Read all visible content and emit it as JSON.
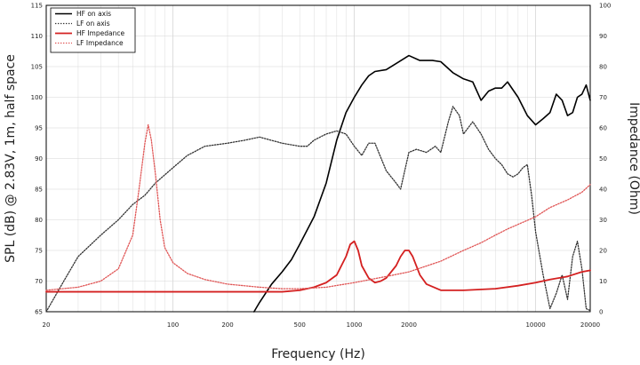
{
  "chart_data": {
    "type": "line",
    "title": "",
    "xlabel": "Frequency (Hz)",
    "ylabel": "SPL (dB) @ 2.83V, 1m, half space",
    "ylabel_right": "Impedance (Ohm)",
    "x_scale": "log",
    "xlim": [
      20,
      20000
    ],
    "ylim": [
      65,
      115
    ],
    "ylim_right": [
      0,
      100
    ],
    "x_ticks": [
      20,
      100,
      200,
      500,
      1000,
      2000,
      10000,
      20000
    ],
    "x_tick_labels": [
      "20",
      "100",
      "200",
      "500",
      "1000",
      "2000",
      "10000",
      "20000"
    ],
    "y_ticks": [
      65,
      70,
      75,
      80,
      85,
      90,
      95,
      100,
      105,
      110,
      115
    ],
    "y_tick_labels": [
      "65",
      "70",
      "75",
      "80",
      "85",
      "90",
      "95",
      "100",
      "105",
      "110",
      "115"
    ],
    "y_right_ticks": [
      0,
      10,
      20,
      30,
      40,
      50,
      60,
      70,
      80,
      90,
      100
    ],
    "y_right_tick_labels": [
      "0",
      "10",
      "20",
      "30",
      "40",
      "50",
      "60",
      "70",
      "80",
      "90",
      "100"
    ],
    "grid": true,
    "legend_position": "top-left",
    "series": [
      {
        "name": "HF on axis",
        "axis": "left",
        "color": "#000000",
        "style": "solid",
        "points": [
          [
            280,
            65
          ],
          [
            300,
            66.5
          ],
          [
            350,
            69.5
          ],
          [
            400,
            71.5
          ],
          [
            450,
            73.5
          ],
          [
            500,
            76
          ],
          [
            600,
            80.5
          ],
          [
            700,
            86
          ],
          [
            800,
            93
          ],
          [
            900,
            97.5
          ],
          [
            1000,
            100
          ],
          [
            1100,
            102
          ],
          [
            1200,
            103.5
          ],
          [
            1300,
            104.2
          ],
          [
            1500,
            104.5
          ],
          [
            1700,
            105.5
          ],
          [
            2000,
            106.8
          ],
          [
            2300,
            106
          ],
          [
            2700,
            106
          ],
          [
            3000,
            105.8
          ],
          [
            3500,
            104
          ],
          [
            4000,
            103
          ],
          [
            4500,
            102.5
          ],
          [
            5000,
            99.5
          ],
          [
            5500,
            101
          ],
          [
            6000,
            101.5
          ],
          [
            6500,
            101.5
          ],
          [
            7000,
            102.5
          ],
          [
            8000,
            100
          ],
          [
            9000,
            97
          ],
          [
            10000,
            95.5
          ],
          [
            11000,
            96.5
          ],
          [
            12000,
            97.5
          ],
          [
            13000,
            100.5
          ],
          [
            14000,
            99.5
          ],
          [
            15000,
            97
          ],
          [
            16000,
            97.5
          ],
          [
            17000,
            100
          ],
          [
            18000,
            100.5
          ],
          [
            19000,
            102
          ],
          [
            20000,
            99.5
          ]
        ]
      },
      {
        "name": "LF on axis",
        "axis": "left",
        "color": "#333333",
        "style": "dotted",
        "points": [
          [
            20,
            65
          ],
          [
            25,
            70
          ],
          [
            30,
            74
          ],
          [
            40,
            77.5
          ],
          [
            50,
            80
          ],
          [
            60,
            82.5
          ],
          [
            70,
            84
          ],
          [
            80,
            86
          ],
          [
            100,
            88.5
          ],
          [
            120,
            90.5
          ],
          [
            150,
            92
          ],
          [
            200,
            92.5
          ],
          [
            250,
            93
          ],
          [
            300,
            93.5
          ],
          [
            400,
            92.5
          ],
          [
            500,
            92
          ],
          [
            550,
            92
          ],
          [
            600,
            93
          ],
          [
            700,
            94
          ],
          [
            800,
            94.5
          ],
          [
            900,
            94
          ],
          [
            1000,
            92
          ],
          [
            1100,
            90.5
          ],
          [
            1200,
            92.5
          ],
          [
            1300,
            92.5
          ],
          [
            1500,
            88
          ],
          [
            1700,
            86
          ],
          [
            1800,
            85
          ],
          [
            2000,
            91
          ],
          [
            2200,
            91.5
          ],
          [
            2500,
            91
          ],
          [
            2800,
            92
          ],
          [
            3000,
            91
          ],
          [
            3300,
            96
          ],
          [
            3500,
            98.5
          ],
          [
            3800,
            97
          ],
          [
            4000,
            94
          ],
          [
            4500,
            96
          ],
          [
            5000,
            94
          ],
          [
            5500,
            91.5
          ],
          [
            6000,
            90
          ],
          [
            6500,
            89
          ],
          [
            7000,
            87.5
          ],
          [
            7500,
            87
          ],
          [
            8000,
            87.5
          ],
          [
            8500,
            88.5
          ],
          [
            9000,
            89
          ],
          [
            9500,
            84
          ],
          [
            10000,
            78
          ],
          [
            11000,
            71
          ],
          [
            12000,
            65.5
          ],
          [
            13000,
            68
          ],
          [
            14000,
            71
          ],
          [
            15000,
            67
          ],
          [
            16000,
            74
          ],
          [
            17000,
            76.5
          ],
          [
            18000,
            72
          ],
          [
            19000,
            65.5
          ],
          [
            20000,
            65.2
          ]
        ]
      },
      {
        "name": "HF Impedance",
        "axis": "right",
        "color": "#d42020",
        "style": "solid",
        "points": [
          [
            20,
            6.5
          ],
          [
            100,
            6.5
          ],
          [
            200,
            6.5
          ],
          [
            400,
            6.5
          ],
          [
            500,
            7
          ],
          [
            600,
            8
          ],
          [
            700,
            9.5
          ],
          [
            800,
            12
          ],
          [
            900,
            18
          ],
          [
            950,
            22
          ],
          [
            1000,
            23
          ],
          [
            1050,
            20
          ],
          [
            1100,
            15
          ],
          [
            1200,
            11
          ],
          [
            1300,
            9.5
          ],
          [
            1400,
            10
          ],
          [
            1500,
            11
          ],
          [
            1700,
            15
          ],
          [
            1800,
            18
          ],
          [
            1900,
            20
          ],
          [
            2000,
            20
          ],
          [
            2100,
            18
          ],
          [
            2300,
            12
          ],
          [
            2500,
            9
          ],
          [
            3000,
            7
          ],
          [
            4000,
            7
          ],
          [
            6000,
            7.5
          ],
          [
            8000,
            8.5
          ],
          [
            10000,
            9.5
          ],
          [
            12000,
            10.5
          ],
          [
            15000,
            11.5
          ],
          [
            18000,
            13
          ],
          [
            20000,
            13.5
          ]
        ]
      },
      {
        "name": "LF Impedance",
        "axis": "right",
        "color": "#e05555",
        "style": "dotted",
        "points": [
          [
            20,
            7
          ],
          [
            30,
            8
          ],
          [
            40,
            10
          ],
          [
            50,
            14
          ],
          [
            60,
            25
          ],
          [
            65,
            40
          ],
          [
            70,
            55
          ],
          [
            73,
            61
          ],
          [
            76,
            56
          ],
          [
            80,
            45
          ],
          [
            85,
            30
          ],
          [
            90,
            21
          ],
          [
            100,
            16
          ],
          [
            120,
            12.5
          ],
          [
            150,
            10.5
          ],
          [
            200,
            9
          ],
          [
            300,
            8
          ],
          [
            400,
            7.5
          ],
          [
            500,
            7.5
          ],
          [
            700,
            8
          ],
          [
            1000,
            9.5
          ],
          [
            1500,
            11.5
          ],
          [
            2000,
            13
          ],
          [
            3000,
            16.5
          ],
          [
            4000,
            20
          ],
          [
            5000,
            22.5
          ],
          [
            6000,
            25
          ],
          [
            7000,
            27
          ],
          [
            8000,
            28.5
          ],
          [
            10000,
            31
          ],
          [
            12000,
            34
          ],
          [
            15000,
            36.5
          ],
          [
            18000,
            39
          ],
          [
            20000,
            41.5
          ]
        ]
      }
    ]
  }
}
